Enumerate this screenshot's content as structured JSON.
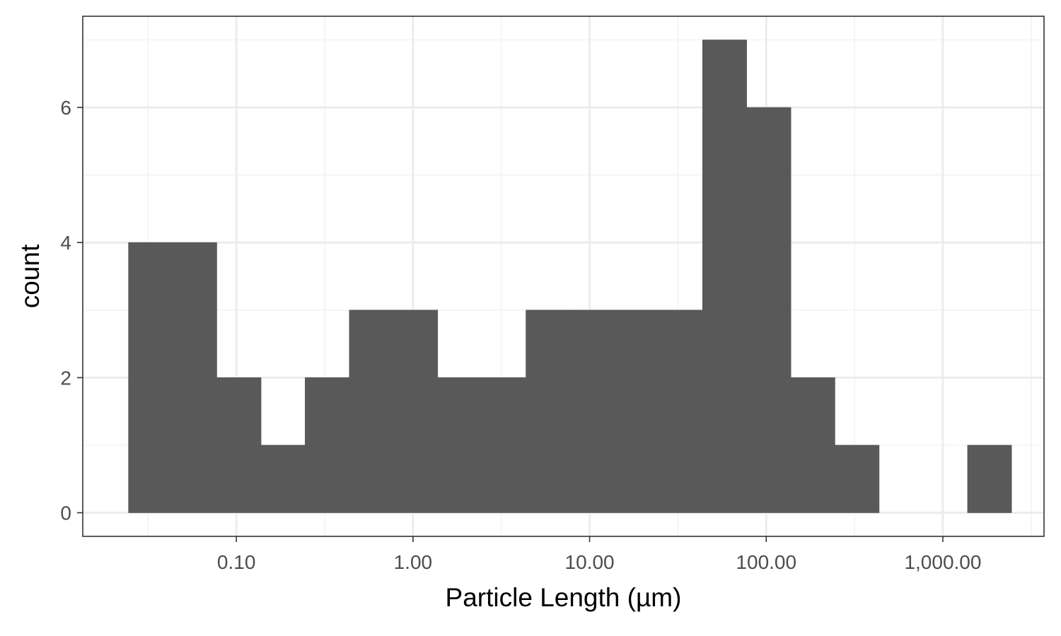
{
  "chart_data": {
    "type": "bar",
    "title": "",
    "xlabel": "Particle Length (µm)",
    "ylabel": "count",
    "x_scale": "log10",
    "xlim": [
      0.0135,
      3740
    ],
    "ylim": [
      -0.35,
      7.35
    ],
    "grid": true,
    "legend": "none",
    "bars": [
      {
        "x0": 0.0245,
        "x1": 0.0436,
        "count": 4
      },
      {
        "x0": 0.0436,
        "x1": 0.0775,
        "count": 4
      },
      {
        "x0": 0.0775,
        "x1": 0.138,
        "count": 2
      },
      {
        "x0": 0.138,
        "x1": 0.245,
        "count": 1
      },
      {
        "x0": 0.245,
        "x1": 0.436,
        "count": 2
      },
      {
        "x0": 0.436,
        "x1": 0.775,
        "count": 3
      },
      {
        "x0": 0.775,
        "x1": 1.38,
        "count": 3
      },
      {
        "x0": 1.38,
        "x1": 2.45,
        "count": 2
      },
      {
        "x0": 2.45,
        "x1": 4.36,
        "count": 2
      },
      {
        "x0": 4.36,
        "x1": 7.75,
        "count": 3
      },
      {
        "x0": 7.75,
        "x1": 13.8,
        "count": 3
      },
      {
        "x0": 13.8,
        "x1": 24.5,
        "count": 3
      },
      {
        "x0": 24.5,
        "x1": 43.6,
        "count": 3
      },
      {
        "x0": 43.6,
        "x1": 77.5,
        "count": 7
      },
      {
        "x0": 77.5,
        "x1": 138,
        "count": 6
      },
      {
        "x0": 138,
        "x1": 245,
        "count": 2
      },
      {
        "x0": 245,
        "x1": 436,
        "count": 1
      },
      {
        "x0": 436,
        "x1": 775,
        "count": 0
      },
      {
        "x0": 775,
        "x1": 1380,
        "count": 0
      },
      {
        "x0": 1380,
        "x1": 2450,
        "count": 1
      }
    ],
    "x_ticks": [
      {
        "value": 0.1,
        "label": "0.10"
      },
      {
        "value": 1,
        "label": "1.00"
      },
      {
        "value": 10,
        "label": "10.00"
      },
      {
        "value": 100,
        "label": "100.00"
      },
      {
        "value": 1000,
        "label": "1,000.00"
      }
    ],
    "x_minor_grid": [
      0.0316,
      0.316,
      3.16,
      31.6,
      316,
      3162
    ],
    "y_ticks": [
      {
        "value": 0,
        "label": "0"
      },
      {
        "value": 2,
        "label": "2"
      },
      {
        "value": 4,
        "label": "4"
      },
      {
        "value": 6,
        "label": "6"
      }
    ],
    "y_minor_grid": [
      1,
      3,
      5,
      7
    ],
    "colors": {
      "bar": "#595959",
      "grid_major": "#ebebeb",
      "grid_minor": "#f2f2f2",
      "panel_border": "#333333",
      "tick_text": "#4d4d4d",
      "axis_title": "#000000"
    }
  }
}
